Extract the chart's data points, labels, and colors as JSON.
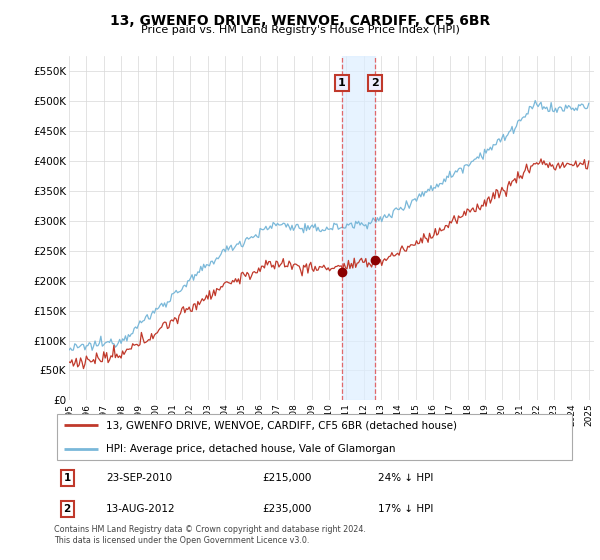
{
  "title": "13, GWENFO DRIVE, WENVOE, CARDIFF, CF5 6BR",
  "subtitle": "Price paid vs. HM Land Registry's House Price Index (HPI)",
  "hpi_label": "HPI: Average price, detached house, Vale of Glamorgan",
  "price_label": "13, GWENFO DRIVE, WENVOE, CARDIFF, CF5 6BR (detached house)",
  "legend_note": "Contains HM Land Registry data © Crown copyright and database right 2024.\nThis data is licensed under the Open Government Licence v3.0.",
  "transaction1_date": "23-SEP-2010",
  "transaction1_price": "£215,000",
  "transaction1_note": "24% ↓ HPI",
  "transaction2_date": "13-AUG-2012",
  "transaction2_price": "£235,000",
  "transaction2_note": "17% ↓ HPI",
  "hpi_color": "#7ab8d9",
  "price_color": "#c0392b",
  "marker_color": "#8b0000",
  "vline_color": "#e05050",
  "shade_color": "#ddeeff",
  "ylim_min": 0,
  "ylim_max": 575000,
  "start_year": 1995,
  "end_year": 2025
}
